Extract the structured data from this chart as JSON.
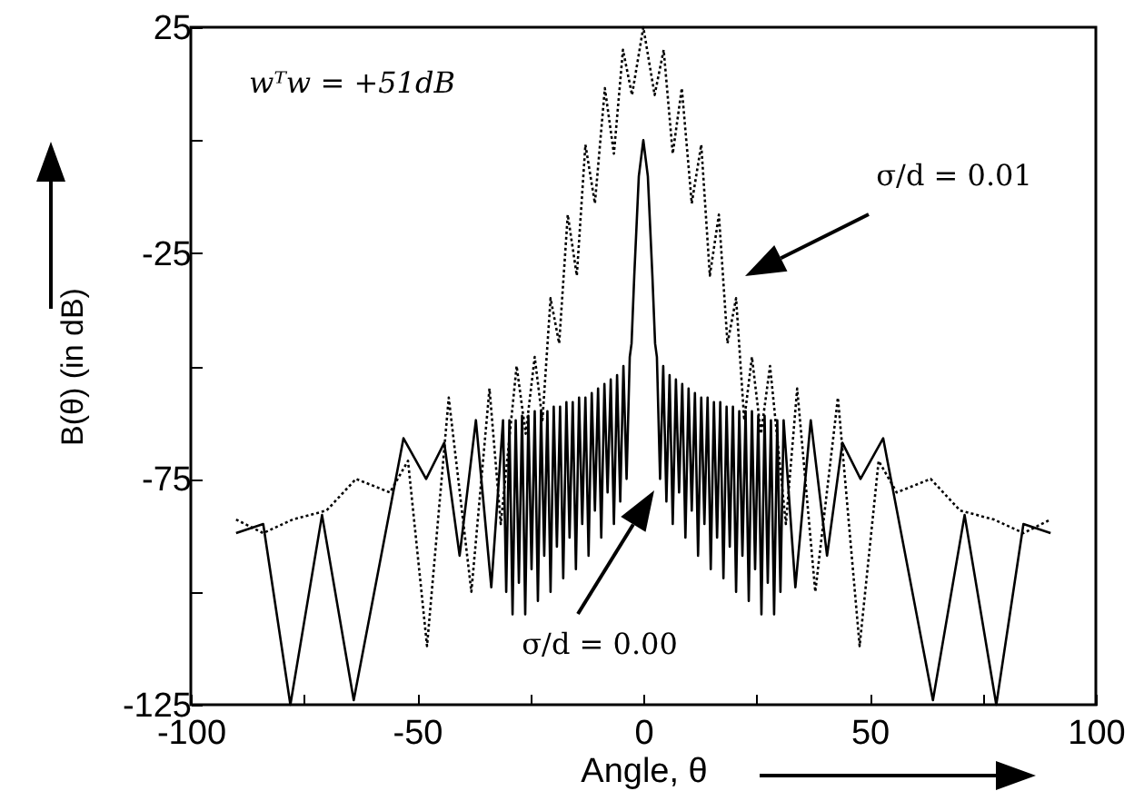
{
  "chart_data": {
    "type": "line",
    "xlabel": "Angle,  θ",
    "ylabel": "B(θ)   (in dB)",
    "xlim": [
      -100,
      100
    ],
    "ylim": [
      -125,
      25
    ],
    "xticks": [
      -100,
      {
        "value": -75,
        "label": null
      },
      -50,
      {
        "value": -25,
        "label": null
      },
      0,
      {
        "value": 25,
        "label": null
      },
      50,
      {
        "value": 75,
        "label": null
      },
      100
    ],
    "yticks": [
      -125,
      {
        "value": -100,
        "label": null
      },
      -75,
      {
        "value": -50,
        "label": null
      },
      -25,
      {
        "value": 0,
        "label": null
      },
      25
    ],
    "grid": false,
    "marker": "none",
    "annotations": [
      "wᵀw = +51dB",
      "σ/d = 0.01",
      "σ/d = 0.00"
    ],
    "series": [
      {
        "color": "#000000",
        "line_style": "dotted",
        "x": [
          -90,
          -84,
          -77.5,
          -70,
          -63.5,
          -56,
          -52,
          -47.8,
          -43,
          -38,
          -34,
          -31.5,
          -28,
          -26,
          -24,
          -22.3,
          -20.5,
          -18.6,
          -16.7,
          -14.7,
          -12.8,
          -10.7,
          -8.5,
          -6.5,
          -4.5,
          -2.5,
          0,
          2.5,
          4.5,
          6.5,
          8.5,
          10.7,
          12.8,
          14.7,
          16.7,
          18.6,
          20.5,
          22.3,
          24,
          26,
          28,
          31.5,
          34,
          38,
          43,
          47.8,
          52,
          56,
          63.5,
          70,
          77.5,
          84,
          90
        ],
        "values": [
          -84,
          -87,
          -84,
          -82,
          -75,
          -78,
          -71,
          -112,
          -57,
          -100,
          -55,
          -85,
          -50,
          -65,
          -48,
          -62,
          -35,
          -45,
          -16.5,
          -30,
          -1,
          -14,
          11.5,
          -3,
          20,
          10,
          25,
          10,
          20,
          -3,
          11.5,
          -14,
          -1,
          -30,
          -16.5,
          -45,
          -35,
          -62,
          -48,
          -65,
          -50,
          -85,
          -55,
          -100,
          -57,
          -112,
          -71,
          -78,
          -75,
          -82,
          -84,
          -87,
          -84
        ]
      },
      {
        "color": "#000000",
        "line_style": "solid",
        "x": [
          -90,
          -84,
          -78,
          -71,
          -64,
          -53,
          -48,
          -44,
          -40.6,
          -37,
          -33.6,
          -31,
          -30.3,
          -29.6,
          -28.9,
          -28.2,
          -27.5,
          -26.8,
          -26.1,
          -25.4,
          -24.7,
          -24,
          -23.3,
          -22.6,
          -21.9,
          -21.2,
          -20.5,
          -19.8,
          -19.1,
          -18.4,
          -17.7,
          -17,
          -16.3,
          -15.6,
          -14.9,
          -14.2,
          -13.5,
          -12.8,
          -12.1,
          -11.4,
          -10.7,
          -10,
          -9.3,
          -8.6,
          -7.9,
          -7.2,
          -6.5,
          -5.8,
          -5.1,
          -4.4,
          -3.7,
          -3,
          -2.6,
          -2,
          -1,
          0,
          1,
          2,
          2.6,
          3,
          3.7,
          4.4,
          5.1,
          5.8,
          6.5,
          7.2,
          7.9,
          8.6,
          9.3,
          10,
          10.7,
          11.4,
          12.1,
          12.8,
          13.5,
          14.2,
          14.9,
          15.6,
          16.3,
          17,
          17.7,
          18.4,
          19.1,
          19.8,
          20.5,
          21.2,
          21.9,
          22.6,
          23.3,
          24,
          24.7,
          25.4,
          26.1,
          26.8,
          27.5,
          28.2,
          28.9,
          29.6,
          30.3,
          31,
          33.6,
          37,
          40.6,
          44,
          48,
          53,
          64,
          71,
          78,
          84,
          90
        ],
        "values": [
          -87,
          -85,
          -125,
          -83,
          -124,
          -66,
          -75,
          -67,
          -92,
          -62,
          -99,
          -62,
          -100,
          -62,
          -105,
          -62,
          -98,
          -61,
          -105,
          -61,
          -95,
          -60,
          -102,
          -60,
          -92,
          -60,
          -100,
          -59,
          -90,
          -59,
          -97,
          -58,
          -88,
          -58,
          -95,
          -57,
          -85,
          -57,
          -92,
          -56,
          -82,
          -55,
          -88,
          -54,
          -78,
          -53,
          -85,
          -52,
          -80,
          -50,
          -75,
          -48,
          -45,
          -30,
          -8,
          0,
          -8,
          -30,
          -45,
          -48,
          -75,
          -50,
          -80,
          -52,
          -85,
          -53,
          -78,
          -54,
          -88,
          -55,
          -82,
          -56,
          -92,
          -57,
          -85,
          -57,
          -95,
          -58,
          -88,
          -58,
          -97,
          -59,
          -90,
          -59,
          -100,
          -60,
          -92,
          -60,
          -102,
          -60,
          -95,
          -61,
          -105,
          -61,
          -98,
          -62,
          -105,
          -62,
          -100,
          -62,
          -99,
          -62,
          -92,
          -67,
          -75,
          -66,
          -124,
          -83,
          -125,
          -85,
          -87
        ]
      }
    ]
  }
}
